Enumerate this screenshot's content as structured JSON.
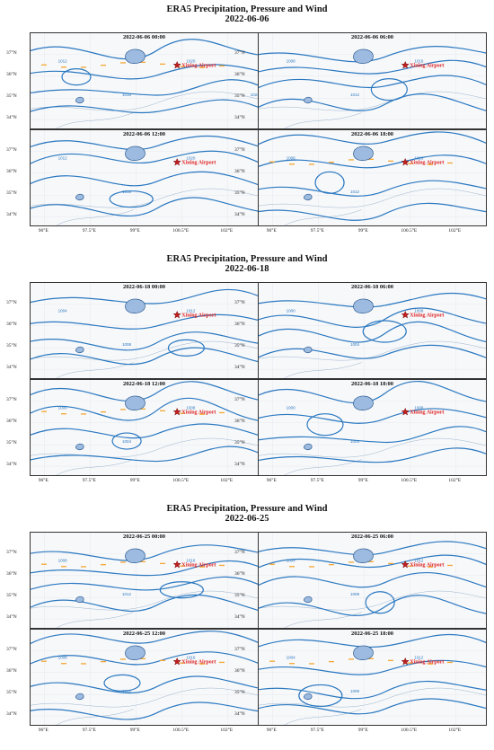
{
  "blocks": [
    {
      "title": "ERA5 Precipitation, Pressure and Wind",
      "date": "2022-06-06",
      "panels": [
        {
          "title": "2022-06-06 00:00",
          "airport": "Xining Airport",
          "iso_labels": [
            "1012",
            "1016",
            "1020",
            "1024"
          ]
        },
        {
          "title": "2022-06-06 06:00",
          "airport": "Xining Airport",
          "iso_labels": [
            "1008",
            "1012",
            "1016"
          ]
        },
        {
          "title": "2022-06-06 12:00",
          "airport": "Xining Airport",
          "iso_labels": [
            "1012",
            "1016",
            "1020"
          ]
        },
        {
          "title": "2022-06-06 18:00",
          "airport": "Xining Airport",
          "iso_labels": [
            "1008",
            "1012",
            "1016"
          ]
        }
      ]
    },
    {
      "title": "ERA5 Precipitation, Pressure and Wind",
      "date": "2022-06-18",
      "panels": [
        {
          "title": "2022-06-18 00:00",
          "airport": "Xining Airport",
          "iso_labels": [
            "1004",
            "1008",
            "1012"
          ]
        },
        {
          "title": "2022-06-18 06:00",
          "airport": "Xining Airport",
          "iso_labels": [
            "1000",
            "1004",
            "1008"
          ]
        },
        {
          "title": "2022-06-18 12:00",
          "airport": "Xining Airport",
          "iso_labels": [
            "1000",
            "1004",
            "1008"
          ]
        },
        {
          "title": "2022-06-18 18:00",
          "airport": "Xining Airport",
          "iso_labels": [
            "1000",
            "1004",
            "1008"
          ]
        }
      ]
    },
    {
      "title": "ERA5 Precipitation, Pressure and Wind",
      "date": "2022-06-25",
      "panels": [
        {
          "title": "2022-06-25 00:00",
          "airport": "Xining Airport",
          "iso_labels": [
            "1008",
            "1012",
            "1016"
          ]
        },
        {
          "title": "2022-06-25 06:00",
          "airport": "Xining Airport",
          "iso_labels": [
            "1004",
            "1008",
            "1012"
          ]
        },
        {
          "title": "2022-06-25 12:00",
          "airport": "Xining Airport",
          "iso_labels": [
            "1008",
            "1012",
            "1016"
          ]
        },
        {
          "title": "2022-06-25 18:00",
          "airport": "Xining Airport",
          "iso_labels": [
            "1004",
            "1008",
            "1012"
          ]
        }
      ]
    }
  ],
  "lat_ticks": [
    "37°N",
    "36°N",
    "35°N",
    "34°N"
  ],
  "lon_ticks": [
    "96°E",
    "97.5°E",
    "99°E",
    "100.5°E",
    "102°E",
    "103.5°E"
  ],
  "colors": {
    "isobar": "#2a78c0",
    "lake": "#9dbbe0",
    "airport_marker": "#c41f1f",
    "wind_arrows": "#f4a733"
  }
}
